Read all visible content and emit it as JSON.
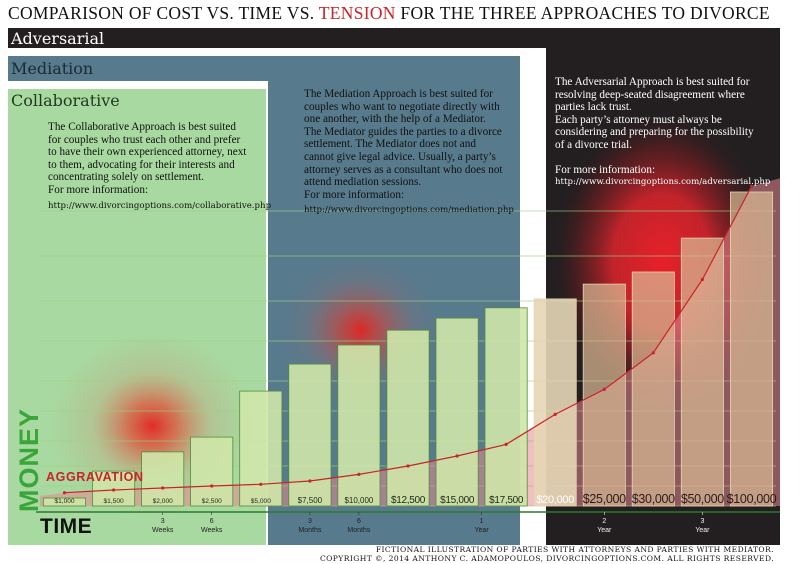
{
  "title": {
    "part1": "COMPARISON  OF COST VS. TIME VS. ",
    "highlight": "TENSION",
    "part2": "  FOR THE THREE APPROACHES TO DIVORCE"
  },
  "colors": {
    "adversarial": "#231f20",
    "mediation": "#577a8c",
    "collaborative": "#a8d9a0",
    "accent": "#c8242a",
    "green": "#3aa63a",
    "bar": "#cfe6a8"
  },
  "approaches": {
    "adversarial": {
      "label": "Adversarial",
      "lines": [
        "The Adversarial Approach is best suited for",
        "resolving deep-seated disagreement where",
        "parties lack trust.",
        "Each party’s attorney must always be",
        "considering and preparing for the possibility",
        "of a divorce trial."
      ],
      "more_info": "For more information:",
      "url": "http://www.divorcingoptions.com/adversarial.php"
    },
    "mediation": {
      "label": "Mediation",
      "lines": [
        "The Mediation Approach is best suited for",
        "couples who want to negotiate directly with",
        "one another, with the help of a Mediator.",
        "The Mediator guides the parties to a divorce",
        "settlement. The Mediator does not and",
        "cannot give legal advice.  Usually, a party’s",
        "attorney serves as a consultant who does not",
        "attend mediation sessions."
      ],
      "more_info": "For more information:",
      "url": "http://www.divorcingoptions.com/mediation.php"
    },
    "collaborative": {
      "label": "Collaborative",
      "lines": [
        "The Collaborative Approach is best suited",
        "for couples who trust each other and prefer",
        "to have their own experienced attorney, next",
        "to them, advocating for their interests and",
        "concentrating solely on settlement."
      ],
      "more_info": "For more information:",
      "url": "http://www.divorcingoptions.com/collaborative.php"
    }
  },
  "chart_data": {
    "type": "bar",
    "title": "COMPARISON  OF COST VS. TIME VS. TENSION  FOR THE THREE APPROACHES TO DIVORCE",
    "xlabel": "TIME",
    "ylabel": "MONEY",
    "series": [
      {
        "name": "MONEY",
        "values": [
          1000,
          1500,
          2000,
          2500,
          5000,
          7500,
          10000,
          12500,
          15000,
          17500,
          20000,
          25000,
          30000,
          50000,
          100000
        ]
      },
      {
        "name": "AGGRAVATION",
        "type": "area",
        "values": [
          1,
          1.8,
          2.4,
          3,
          3.5,
          4.5,
          6.5,
          9,
          12,
          15.5,
          24.5,
          32,
          43,
          65,
          93
        ]
      }
    ],
    "categories": [
      "$1,000",
      "$1,500",
      "$2,000",
      "$2,500",
      "$5,000",
      "$7,500",
      "$10,000",
      "$12,500",
      "$15,000",
      "$17,500",
      "$20,000",
      "$25,000",
      "$30,000",
      "$50,000",
      "$100,000"
    ],
    "time_ticks": [
      {
        "label": "3\nWeeks",
        "at": 2
      },
      {
        "label": "6\nWeeks",
        "at": 3
      },
      {
        "label": "3\nMonths",
        "at": 5
      },
      {
        "label": "6\nMonths",
        "at": 6
      },
      {
        "label": "1\nYear",
        "at": 8.5
      },
      {
        "label": "2\nYear",
        "at": 11
      },
      {
        "label": "3\nYear",
        "at": 13
      }
    ],
    "aggravation_label": "AGGRAVATION"
  },
  "footer": {
    "line1": "FICTIONAL ILLUSTRATION OF PARTIES WITH ATTORNEYS AND PARTIES WITH MEDIATOR.",
    "line2": "COPYRIGHT ©, 2014 ANTHONY C. ADAMOPOULOS, DIVORCINGOPTIONS.COM. ALL RIGHTS RESERVED."
  }
}
